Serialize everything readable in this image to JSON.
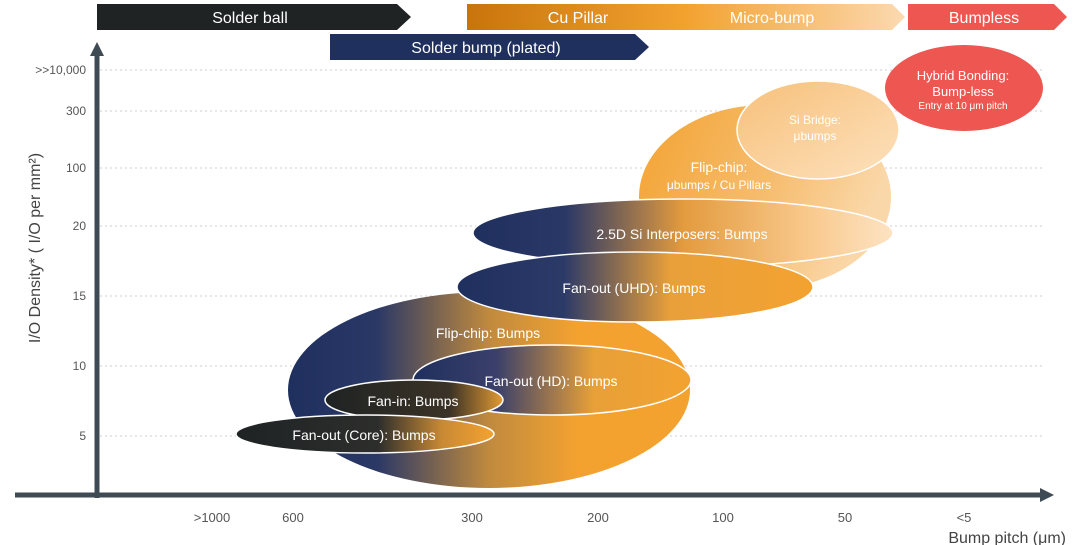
{
  "colors": {
    "navy": "#1f2f5e",
    "orange": "#f3a230",
    "dark": "#1f2324",
    "peach": "#f8c987",
    "red_banner": "#ee5652",
    "copper": "#c8740c",
    "grid": "#cfcfcf",
    "axis": "#3f4b54"
  },
  "banners": {
    "solder_ball": "Solder ball",
    "solder_bump": "Solder bump (plated)",
    "cu_pillar": "Cu Pillar",
    "micro_bump": "Micro-bump",
    "bumpless": "Bumpless"
  },
  "axes": {
    "y_label": "I/O Density* ( I/O per mm²)",
    "x_label": "Bump pitch (μm)",
    "y_ticks": [
      ">>10,000",
      "300",
      "100",
      "20",
      "15",
      "10",
      "5"
    ],
    "x_ticks": [
      ">1000",
      "600",
      "300",
      "200",
      "100",
      "50",
      "<5"
    ]
  },
  "regions": {
    "flipchip_bumps": "Flip-chip: Bumps",
    "fanin": "Fan-in: Bumps",
    "fanout_core": "Fan-out (Core): Bumps",
    "fanout_hd": "Fan-out (HD): Bumps",
    "fanout_uhd": "Fan-out (UHD): Bumps",
    "si_interposers": "2.5D Si Interposers: Bumps",
    "flipchip_ubumps_1": "Flip-chip:",
    "flipchip_ubumps_2": "μbumps / Cu Pillars",
    "si_bridge_1": "Si Bridge:",
    "si_bridge_2": "μbumps",
    "hybrid_1": "Hybrid Bonding:",
    "hybrid_2": "Bump-less",
    "hybrid_3": "Entry at 10 μm pitch"
  }
}
